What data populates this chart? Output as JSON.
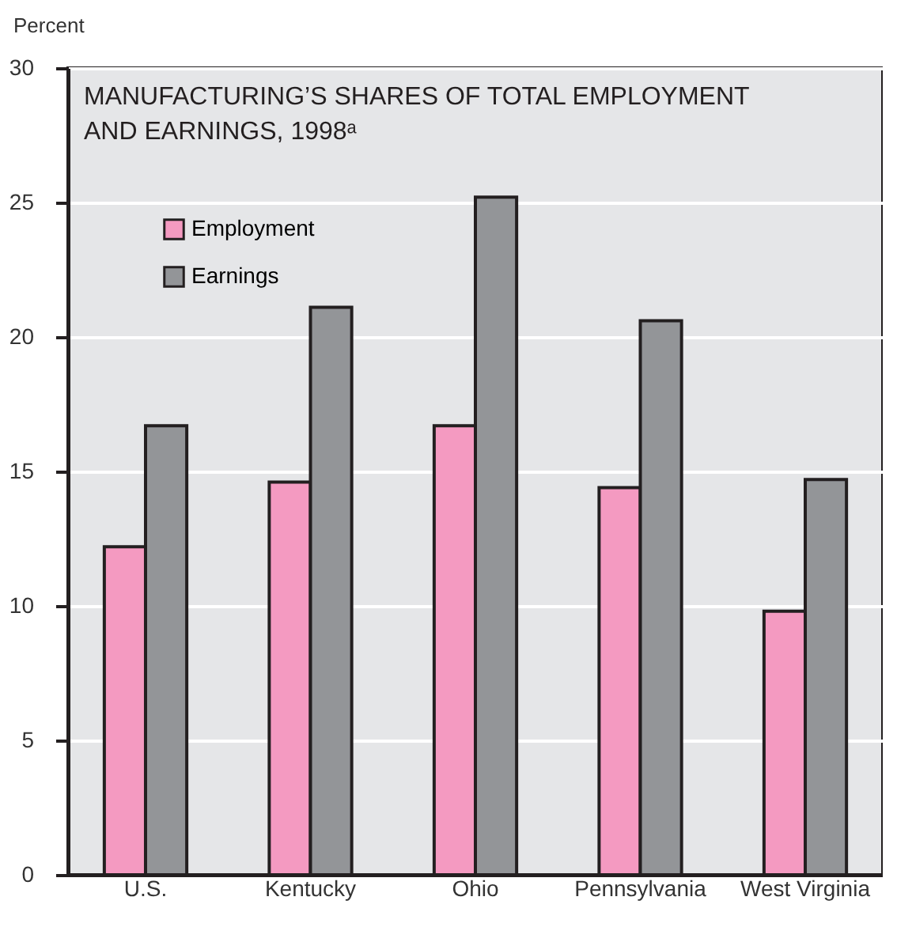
{
  "chart_data": {
    "type": "bar",
    "title": "MANUFACTURING’S SHARES OF TOTAL EMPLOYMENT AND EARNINGS, 1998ᵃ",
    "ylabel": "Percent",
    "categories": [
      "U.S.",
      "Kentucky",
      "Ohio",
      "Pennsylvania",
      "West Virginia"
    ],
    "series": [
      {
        "name": "Employment",
        "color": "#f49ac1",
        "values": [
          12.2,
          14.6,
          16.7,
          14.4,
          9.8
        ]
      },
      {
        "name": "Earnings",
        "color": "#939598",
        "values": [
          16.7,
          21.1,
          25.2,
          20.6,
          14.7
        ]
      }
    ],
    "ylim": [
      0,
      30
    ],
    "yticks": [
      0,
      5,
      10,
      15,
      20,
      25,
      30
    ],
    "grid": "y",
    "legend": "top left"
  }
}
